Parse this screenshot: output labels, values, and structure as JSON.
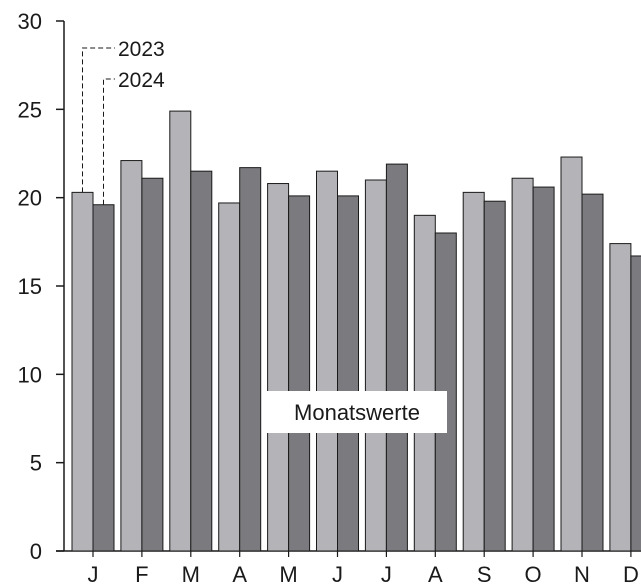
{
  "chart_data": {
    "type": "bar",
    "title": "",
    "xlabel": "",
    "ylabel": "",
    "ylim": [
      0,
      30
    ],
    "yticks": [
      0,
      5,
      10,
      15,
      20,
      25,
      30
    ],
    "grid": false,
    "legend_placement": "top-left, leader lines to January bars",
    "annotation": "Monatswerte",
    "categories": [
      "J",
      "F",
      "M",
      "A",
      "M",
      "J",
      "J",
      "A",
      "S",
      "O",
      "N",
      "D"
    ],
    "series": [
      {
        "name": "2023",
        "color": "#b4b4b8",
        "values": [
          20.3,
          22.1,
          24.9,
          19.7,
          20.8,
          21.5,
          21.0,
          19.0,
          20.3,
          21.1,
          22.3,
          17.4
        ]
      },
      {
        "name": "2024",
        "color": "#7b7b7f",
        "values": [
          19.6,
          21.1,
          21.5,
          21.7,
          20.1,
          20.1,
          21.9,
          18.0,
          19.8,
          20.6,
          20.2,
          16.7
        ]
      }
    ]
  }
}
